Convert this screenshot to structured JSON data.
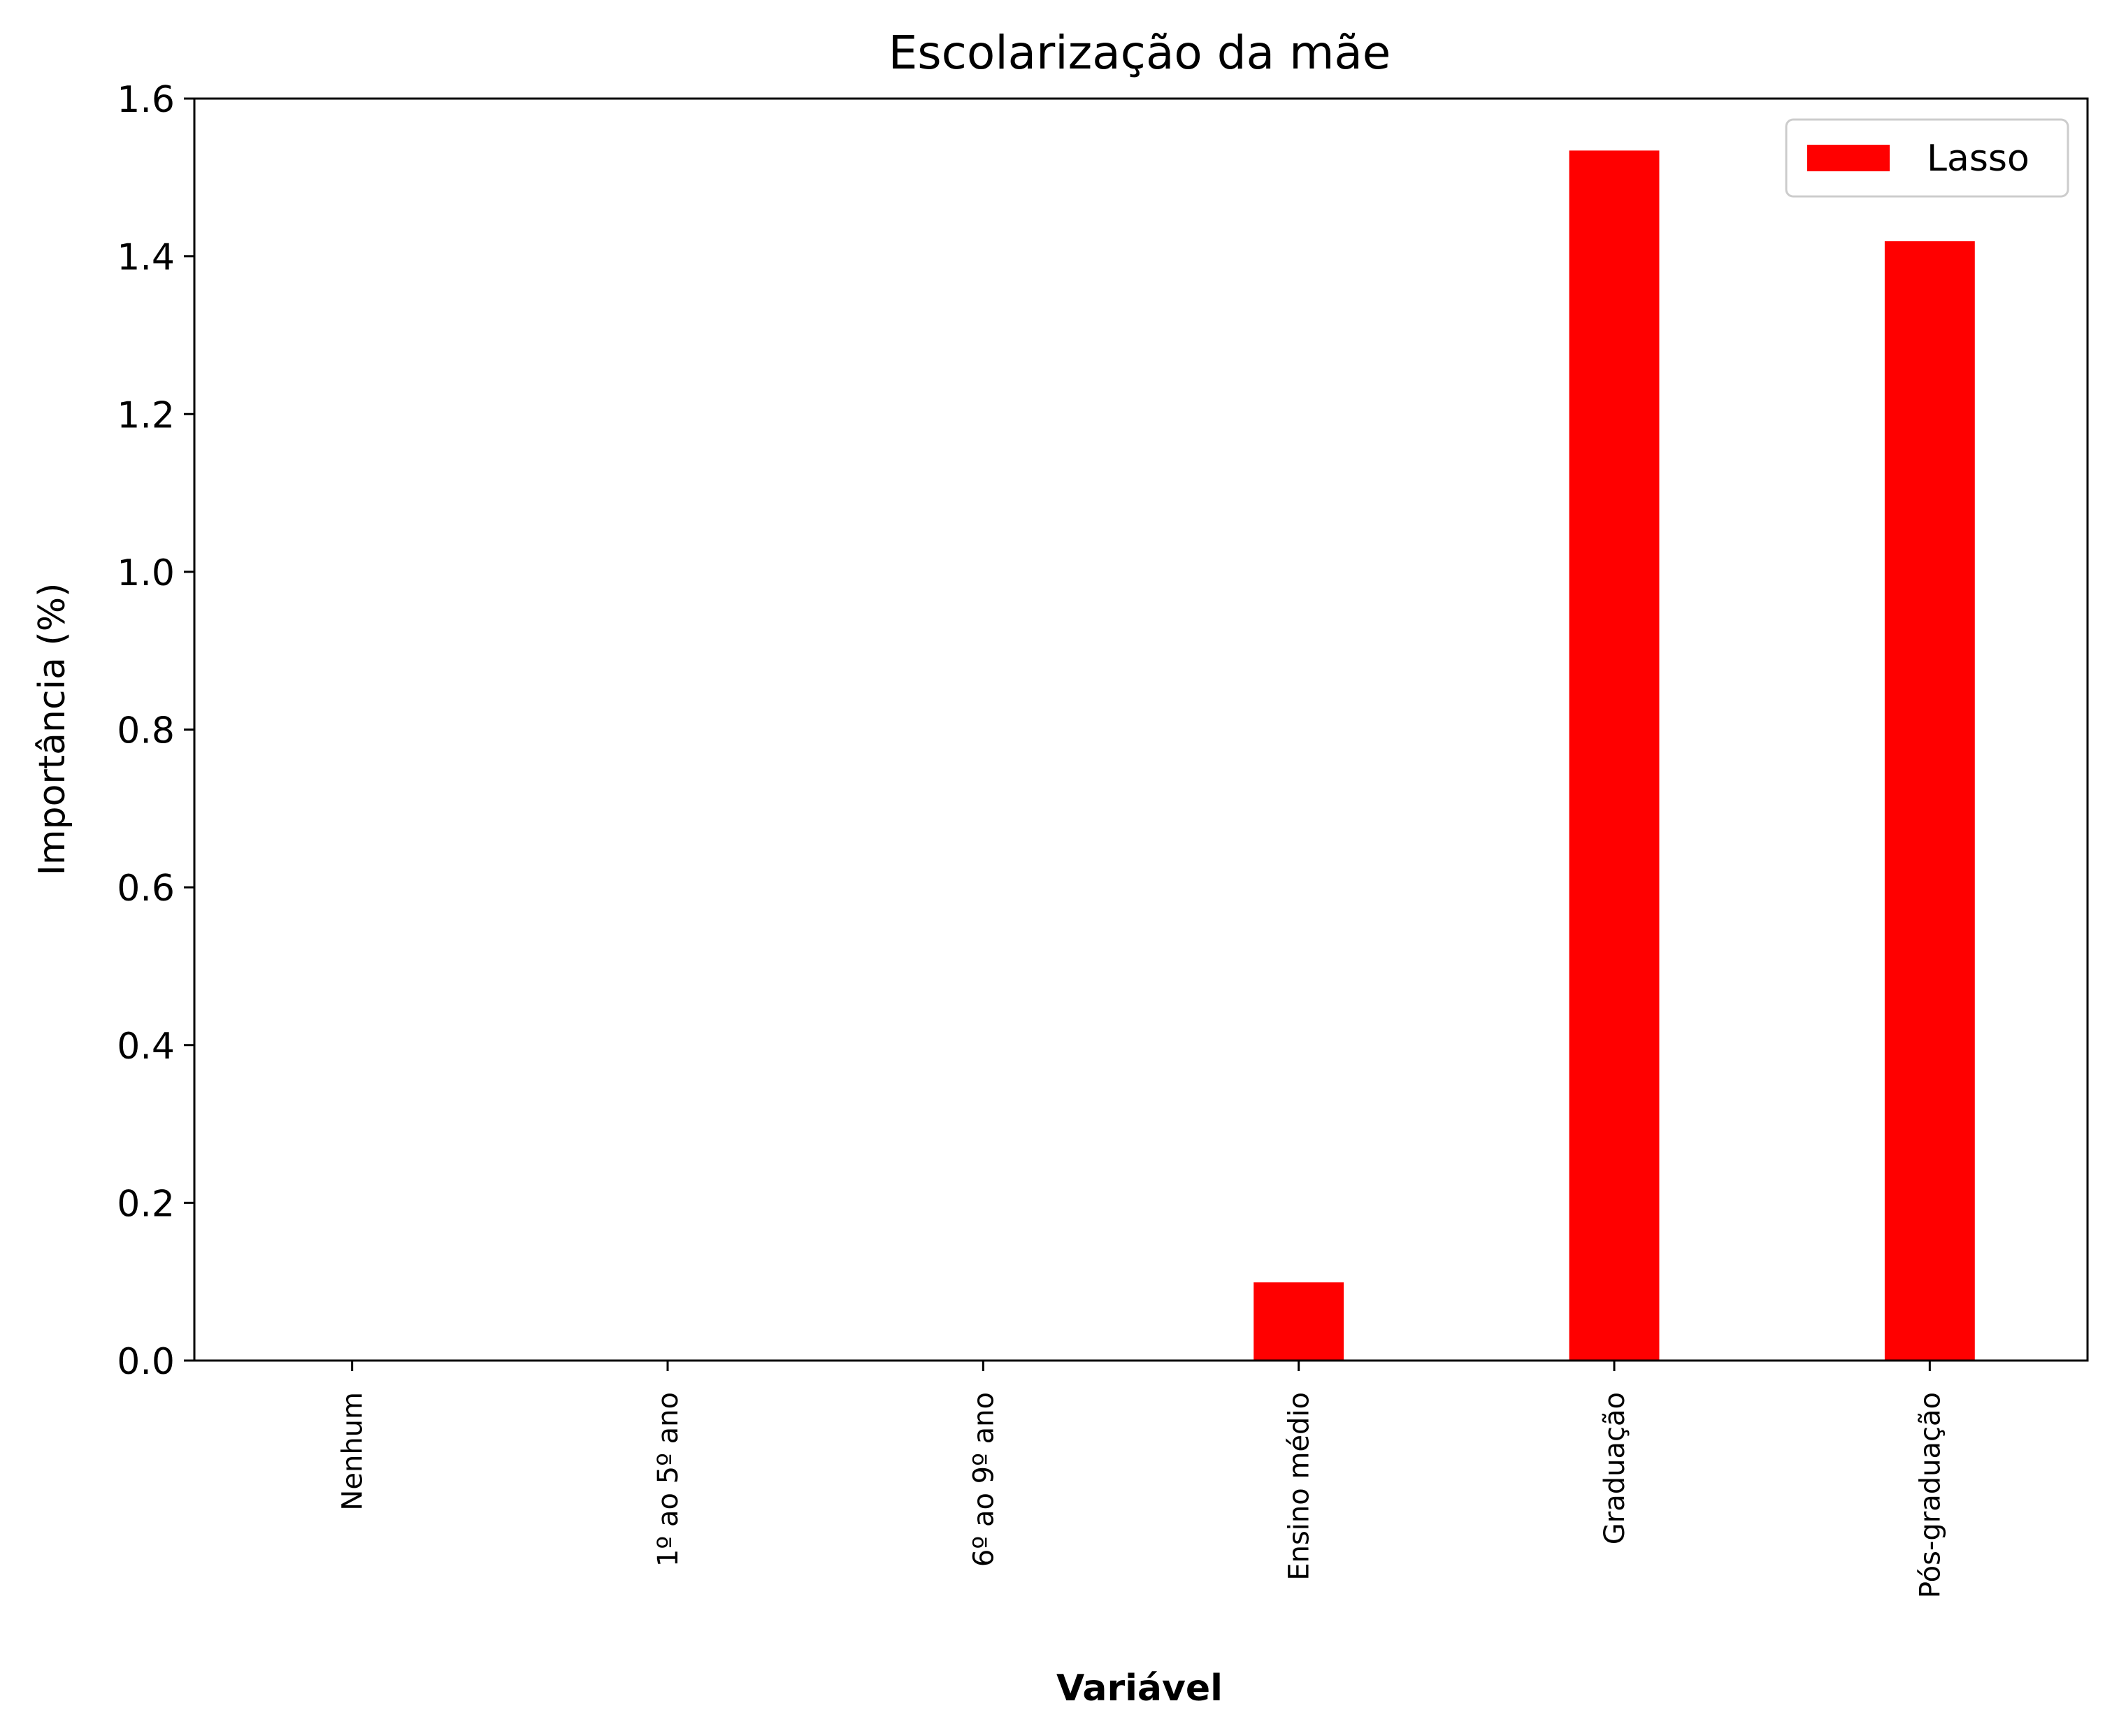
{
  "chart_data": {
    "type": "bar",
    "title": "Escolarização da mãe",
    "xlabel": "Variável",
    "ylabel": "Importância (%)",
    "categories": [
      "Nenhum",
      "1º ao 5º ano",
      "6º ao 9º ano",
      "Ensino médio",
      "Graduação",
      "Pós-graduação"
    ],
    "series": [
      {
        "name": "Lasso",
        "values": [
          0.0,
          0.0,
          0.0,
          0.1,
          1.535,
          1.42
        ],
        "color": "#ff0000"
      }
    ],
    "ylim": [
      0,
      1.6
    ],
    "yticks": [
      "0.0",
      "0.2",
      "0.4",
      "0.6",
      "0.8",
      "1.0",
      "1.2",
      "1.4",
      "1.6"
    ],
    "grid": false,
    "legend_position": "top-right"
  }
}
